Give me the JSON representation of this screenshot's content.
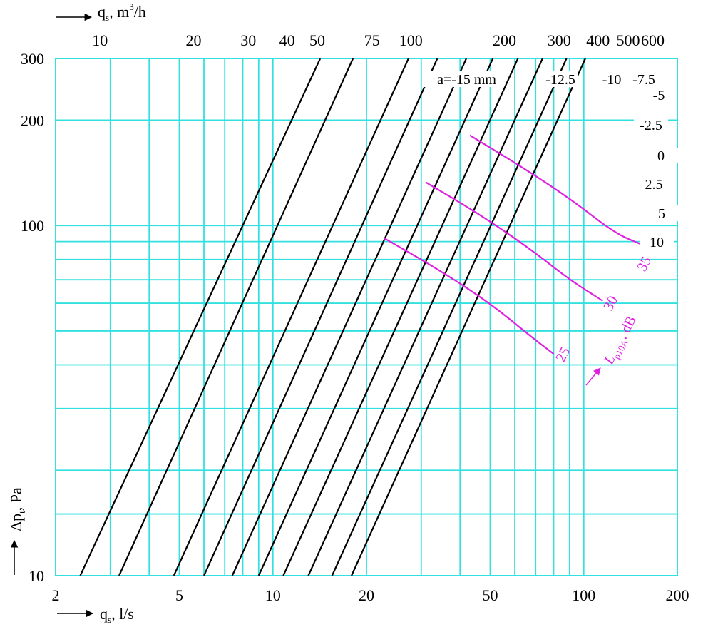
{
  "colors": {
    "grid": "#33e0e0",
    "lines": "#000000",
    "noise": "#e020e0",
    "background": "#ffffff"
  },
  "chart_data": {
    "type": "line",
    "scale": {
      "x": "log",
      "y": "log"
    },
    "grid": true,
    "x_axis": {
      "label_main": "q",
      "label_sub": "s",
      "label_rest": ", l/s",
      "range": [
        2,
        200
      ],
      "ticks": [
        2,
        5,
        10,
        20,
        50,
        100,
        200
      ],
      "tick_labels": [
        "2",
        "5",
        "10",
        "20",
        "50",
        "100",
        "200"
      ]
    },
    "x2_axis": {
      "label_main": "q",
      "label_sub": "s",
      "label_rest": ", m",
      "label_sup": "3",
      "label_tail": "/h",
      "ticks": [
        10,
        20,
        30,
        40,
        50,
        75,
        100,
        200,
        300,
        400,
        500,
        600
      ],
      "tick_labels": [
        "10",
        "20",
        "30",
        "40",
        "50",
        "75",
        "100",
        "200",
        "300",
        "400",
        "500",
        "600"
      ]
    },
    "y_axis": {
      "label_main": "Δp",
      "label_sub": "t",
      "label_rest": ", Pa",
      "range": [
        10,
        300
      ],
      "ticks": [
        10,
        100,
        200,
        300
      ],
      "tick_labels": [
        "10",
        "100",
        "200",
        "300"
      ]
    },
    "x_grid_values": [
      3,
      4,
      5,
      6,
      7,
      8,
      9,
      10,
      20,
      30,
      40,
      50,
      60,
      70,
      80,
      90,
      100
    ],
    "y_grid_values": [
      15,
      20,
      30,
      40,
      50,
      60,
      70,
      80,
      90,
      100,
      200
    ],
    "series_lines": [
      {
        "label": "a=-15 mm",
        "x_at_y10": 2.4,
        "x_at_y300": 14.2
      },
      {
        "label": "-12.5",
        "x_at_y10": 3.2,
        "x_at_y300": 18.1
      },
      {
        "label": "-10",
        "x_at_y10": 4.8,
        "x_at_y300": 27.3
      },
      {
        "label": "-7.5",
        "x_at_y10": 6.0,
        "x_at_y300": 33.8
      },
      {
        "label": "-5",
        "x_at_y10": 7.4,
        "x_at_y300": 41.9
      },
      {
        "label": "-2.5",
        "x_at_y10": 9.0,
        "x_at_y300": 51.0
      },
      {
        "label": "0",
        "x_at_y10": 10.8,
        "x_at_y300": 61.4
      },
      {
        "label": "2.5",
        "x_at_y10": 13.0,
        "x_at_y300": 73.7
      },
      {
        "label": "5",
        "x_at_y10": 15.5,
        "x_at_y300": 88.0
      },
      {
        "label": "10",
        "x_at_y10": 17.9,
        "x_at_y300": 101.2
      }
    ],
    "noise_curves": [
      {
        "label": "25",
        "points": [
          [
            22.8,
            92
          ],
          [
            34,
            75
          ],
          [
            50,
            60
          ],
          [
            68,
            48
          ],
          [
            80,
            43
          ]
        ]
      },
      {
        "label": "30",
        "points": [
          [
            31,
            133
          ],
          [
            46,
            108
          ],
          [
            67,
            86
          ],
          [
            90,
            70
          ],
          [
            115,
            61
          ]
        ]
      },
      {
        "label": "35",
        "points": [
          [
            43,
            181
          ],
          [
            64,
            146
          ],
          [
            92,
            118
          ],
          [
            126,
            95
          ],
          [
            155,
            88
          ]
        ]
      }
    ],
    "noise_axis_label": {
      "main": "L",
      "sub": "p10A",
      "rest": ", dB"
    }
  }
}
